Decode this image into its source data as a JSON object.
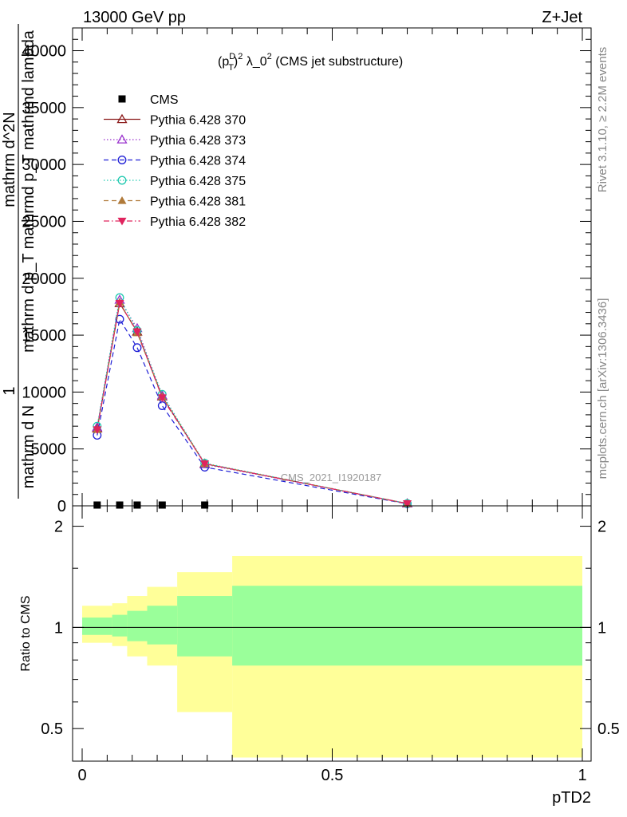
{
  "header": {
    "left": "13000 GeV pp",
    "right": "Z+Jet"
  },
  "side_labels": {
    "rivet": "Rivet 3.1.10, ≥ 2.2M events",
    "mcplots": "mcplots.cern.ch [arXiv:1306.3436]"
  },
  "colors": {
    "cms": "#000000",
    "p370": "#8b1a1a",
    "p373": "#9a32cd",
    "p374": "#1f1fd6",
    "p375": "#20c9b0",
    "p381": "#b07a3a",
    "p382": "#e0245e",
    "band_inner": "#9aff9a",
    "band_outer": "#ffff99"
  },
  "chart_data": [
    {
      "type": "line",
      "title": "(p_T^D)^2 λ_0^2 (CMS jet substructure)",
      "title_parts": {
        "base": "(p",
        "sup": "D",
        "sub": "T",
        "sup2": "2",
        "rest": " λ_0",
        "sup3": "2",
        "tail": " (CMS jet substructure)"
      },
      "ylabel_lines": [
        "1",
        "mathrm d N mathrm d N mathrm d p_T mathrmd p_T mathrmd lambda",
        "mathrm d^2N"
      ],
      "ylabel_top": "mathrm d^2N",
      "ylabel_frac_num": "mathrm d^2N",
      "ylabel_frac_den": "mathrm d p_T mathrmd p_T mathrmd lambda",
      "ylabel_prefix": "1",
      "ylabel_prefix_den": "mathrm d N",
      "watermark": "CMS_2021_I1920187",
      "xlim": [
        0,
        1
      ],
      "ylim": [
        0,
        42000
      ],
      "yticks": [
        0,
        5000,
        10000,
        15000,
        20000,
        25000,
        30000,
        35000,
        40000
      ],
      "ytick_labels": [
        "0",
        "5000",
        "10000",
        "15000",
        "20000",
        "25000",
        "30000",
        "35000",
        "40000"
      ],
      "legend_position": "top-left",
      "x": [
        0.03,
        0.075,
        0.11,
        0.16,
        0.245,
        0.65
      ],
      "series": [
        {
          "name": "CMS",
          "marker": "square",
          "values": [
            0,
            0,
            0,
            0,
            0,
            null
          ]
        },
        {
          "name": "Pythia 6.428 370",
          "marker": "triangle-open",
          "dash": "solid",
          "values": [
            6800,
            17800,
            15300,
            9600,
            3700,
            200
          ]
        },
        {
          "name": "Pythia 6.428 373",
          "marker": "triangle-open",
          "dash": "dot",
          "values": [
            6900,
            18100,
            15600,
            9700,
            3650,
            210
          ]
        },
        {
          "name": "Pythia 6.428 374",
          "marker": "circle-open",
          "dash": "dash",
          "values": [
            6200,
            16400,
            13900,
            8800,
            3400,
            180
          ]
        },
        {
          "name": "Pythia 6.428 375",
          "marker": "circle-open",
          "dash": "dot",
          "values": [
            7000,
            18300,
            15400,
            9800,
            3750,
            205
          ]
        },
        {
          "name": "Pythia 6.428 381",
          "marker": "triangle-filled",
          "dash": "dash",
          "values": [
            6700,
            17900,
            15200,
            9600,
            3700,
            200
          ]
        },
        {
          "name": "Pythia 6.428 382",
          "marker": "triangle-down-filled",
          "dash": "dashdot",
          "values": [
            6700,
            17800,
            15300,
            9500,
            3700,
            200
          ]
        }
      ]
    },
    {
      "type": "area",
      "ylabel": "Ratio to CMS",
      "xlabel": "pTD2",
      "xlim": [
        0,
        1
      ],
      "ylim": [
        0.4,
        2.3
      ],
      "scale": "log",
      "yticks": [
        0.5,
        1,
        2
      ],
      "ytick_labels": [
        "0.5",
        "1",
        "2"
      ],
      "xticks": [
        0,
        0.5,
        1
      ],
      "xtick_labels": [
        "0",
        "0.5",
        "1"
      ],
      "bin_edges": [
        0.0,
        0.06,
        0.09,
        0.13,
        0.19,
        0.3,
        1.0
      ],
      "inner_band": {
        "lo": [
          0.95,
          0.94,
          0.91,
          0.89,
          0.82,
          0.77
        ],
        "hi": [
          1.07,
          1.09,
          1.12,
          1.16,
          1.24,
          1.33
        ]
      },
      "outer_band": {
        "lo": [
          0.9,
          0.88,
          0.82,
          0.77,
          0.56,
          0.41
        ],
        "hi": [
          1.16,
          1.18,
          1.24,
          1.32,
          1.46,
          1.63
        ]
      },
      "reference_line": 1
    }
  ]
}
